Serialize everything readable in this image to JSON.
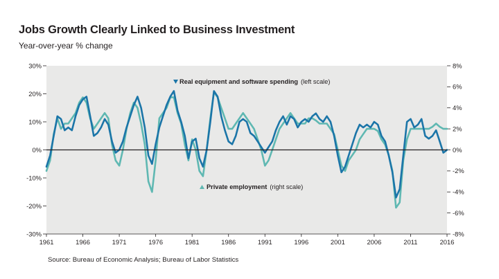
{
  "chart_data": {
    "type": "line",
    "title": "Jobs Growth Clearly Linked to Business Investment",
    "subtitle": "Year-over-year % change",
    "source": "Source: Bureau of Economic Analysis; Bureau of Labor Statistics",
    "x_ticks": [
      "1961",
      "1966",
      "1971",
      "1976",
      "1981",
      "1986",
      "1991",
      "1996",
      "2001",
      "2006",
      "2011",
      "2016"
    ],
    "xlim": [
      1961,
      2016
    ],
    "left_axis": {
      "ylim": [
        -30,
        30
      ],
      "ticks": [
        "30%",
        "20%",
        "10%",
        "0%",
        "-10%",
        "-20%",
        "-30%"
      ]
    },
    "right_axis": {
      "ylim": [
        -8,
        8
      ],
      "ticks": [
        "8%",
        "6%",
        "4%",
        "2%",
        "0%",
        "-2%",
        "-4%",
        "-6%",
        "-8%"
      ]
    },
    "series": [
      {
        "name": "Real equipment and software spending",
        "scale_label": "(left scale)",
        "axis": "left",
        "color": "#1b75a8",
        "points": [
          [
            1961.0,
            -6
          ],
          [
            1961.5,
            -2
          ],
          [
            1962.0,
            5
          ],
          [
            1962.5,
            12
          ],
          [
            1963.0,
            11
          ],
          [
            1963.5,
            7
          ],
          [
            1964.0,
            8
          ],
          [
            1964.5,
            7
          ],
          [
            1965.0,
            12
          ],
          [
            1965.5,
            16
          ],
          [
            1966.0,
            18
          ],
          [
            1966.5,
            19
          ],
          [
            1967.0,
            12
          ],
          [
            1967.5,
            5
          ],
          [
            1968.0,
            6
          ],
          [
            1968.5,
            8
          ],
          [
            1969.0,
            11
          ],
          [
            1969.5,
            9
          ],
          [
            1970.0,
            3
          ],
          [
            1970.5,
            -1
          ],
          [
            1971.0,
            0
          ],
          [
            1971.5,
            3
          ],
          [
            1972.0,
            8
          ],
          [
            1972.5,
            12
          ],
          [
            1973.0,
            16
          ],
          [
            1973.5,
            19
          ],
          [
            1974.0,
            15
          ],
          [
            1974.5,
            8
          ],
          [
            1975.0,
            -2
          ],
          [
            1975.5,
            -5
          ],
          [
            1976.0,
            2
          ],
          [
            1976.5,
            8
          ],
          [
            1977.0,
            12
          ],
          [
            1977.5,
            16
          ],
          [
            1978.0,
            19
          ],
          [
            1978.5,
            21
          ],
          [
            1979.0,
            14
          ],
          [
            1979.5,
            10
          ],
          [
            1980.0,
            5
          ],
          [
            1980.5,
            -3
          ],
          [
            1981.0,
            3
          ],
          [
            1981.5,
            4
          ],
          [
            1982.0,
            -3
          ],
          [
            1982.5,
            -6
          ],
          [
            1983.0,
            0
          ],
          [
            1983.5,
            10
          ],
          [
            1984.0,
            21
          ],
          [
            1984.5,
            19
          ],
          [
            1985.0,
            12
          ],
          [
            1985.5,
            7
          ],
          [
            1986.0,
            3
          ],
          [
            1986.5,
            2
          ],
          [
            1987.0,
            5
          ],
          [
            1987.5,
            10
          ],
          [
            1988.0,
            11
          ],
          [
            1988.5,
            10
          ],
          [
            1989.0,
            6
          ],
          [
            1989.5,
            5
          ],
          [
            1990.0,
            3
          ],
          [
            1990.5,
            1
          ],
          [
            1991.0,
            -1
          ],
          [
            1991.5,
            1
          ],
          [
            1992.0,
            3
          ],
          [
            1992.5,
            7
          ],
          [
            1993.0,
            10
          ],
          [
            1993.5,
            12
          ],
          [
            1994.0,
            9
          ],
          [
            1994.5,
            12
          ],
          [
            1995.0,
            11
          ],
          [
            1995.5,
            8
          ],
          [
            1996.0,
            10
          ],
          [
            1996.5,
            11
          ],
          [
            1997.0,
            10
          ],
          [
            1997.5,
            12
          ],
          [
            1998.0,
            13
          ],
          [
            1998.5,
            11
          ],
          [
            1999.0,
            10
          ],
          [
            1999.5,
            12
          ],
          [
            2000.0,
            10
          ],
          [
            2000.5,
            5
          ],
          [
            2001.0,
            -2
          ],
          [
            2001.5,
            -8
          ],
          [
            2002.0,
            -6
          ],
          [
            2002.5,
            -2
          ],
          [
            2003.0,
            2
          ],
          [
            2003.5,
            6
          ],
          [
            2004.0,
            9
          ],
          [
            2004.5,
            8
          ],
          [
            2005.0,
            9
          ],
          [
            2005.5,
            8
          ],
          [
            2006.0,
            10
          ],
          [
            2006.5,
            9
          ],
          [
            2007.0,
            5
          ],
          [
            2007.5,
            3
          ],
          [
            2008.0,
            -2
          ],
          [
            2008.5,
            -8
          ],
          [
            2009.0,
            -17
          ],
          [
            2009.5,
            -14
          ],
          [
            2010.0,
            -2
          ],
          [
            2010.5,
            10
          ],
          [
            2011.0,
            11
          ],
          [
            2011.5,
            8
          ],
          [
            2012.0,
            9
          ],
          [
            2012.5,
            11
          ],
          [
            2013.0,
            5
          ],
          [
            2013.5,
            4
          ],
          [
            2014.0,
            5
          ],
          [
            2014.5,
            7
          ],
          [
            2015.0,
            3
          ],
          [
            2015.5,
            -1
          ],
          [
            2016.0,
            0
          ]
        ]
      },
      {
        "name": "Private employment",
        "scale_label": "(right scale)",
        "axis": "right",
        "color": "#5fb8b2",
        "points": [
          [
            1961.0,
            -2
          ],
          [
            1961.5,
            -1
          ],
          [
            1962.0,
            1.5
          ],
          [
            1962.5,
            3
          ],
          [
            1963.0,
            2
          ],
          [
            1963.5,
            2.5
          ],
          [
            1964.0,
            2.5
          ],
          [
            1964.5,
            3
          ],
          [
            1965.0,
            3.5
          ],
          [
            1965.5,
            4.5
          ],
          [
            1966.0,
            5
          ],
          [
            1966.5,
            4.5
          ],
          [
            1967.0,
            3
          ],
          [
            1967.5,
            2
          ],
          [
            1968.0,
            2.5
          ],
          [
            1968.5,
            3
          ],
          [
            1969.0,
            3.5
          ],
          [
            1969.5,
            3
          ],
          [
            1970.0,
            0.5
          ],
          [
            1970.5,
            -1
          ],
          [
            1971.0,
            -1.5
          ],
          [
            1971.5,
            0
          ],
          [
            1972.0,
            2
          ],
          [
            1972.5,
            3.5
          ],
          [
            1973.0,
            4.5
          ],
          [
            1973.5,
            4
          ],
          [
            1974.0,
            2.5
          ],
          [
            1974.5,
            0.5
          ],
          [
            1975.0,
            -3
          ],
          [
            1975.5,
            -4
          ],
          [
            1976.0,
            -1
          ],
          [
            1976.5,
            3
          ],
          [
            1977.0,
            3.5
          ],
          [
            1977.5,
            4
          ],
          [
            1978.0,
            5
          ],
          [
            1978.5,
            5
          ],
          [
            1979.0,
            3.5
          ],
          [
            1979.5,
            2.5
          ],
          [
            1980.0,
            0.5
          ],
          [
            1980.5,
            -1
          ],
          [
            1981.0,
            1
          ],
          [
            1981.5,
            0
          ],
          [
            1982.0,
            -2
          ],
          [
            1982.5,
            -2.5
          ],
          [
            1983.0,
            0
          ],
          [
            1983.5,
            3
          ],
          [
            1984.0,
            5.5
          ],
          [
            1984.5,
            5
          ],
          [
            1985.0,
            4
          ],
          [
            1985.5,
            3
          ],
          [
            1986.0,
            2
          ],
          [
            1986.5,
            2
          ],
          [
            1987.0,
            2.5
          ],
          [
            1987.5,
            3
          ],
          [
            1988.0,
            3.5
          ],
          [
            1988.5,
            3
          ],
          [
            1989.0,
            2.5
          ],
          [
            1989.5,
            2
          ],
          [
            1990.0,
            1
          ],
          [
            1990.5,
            0
          ],
          [
            1991.0,
            -1.5
          ],
          [
            1991.5,
            -1
          ],
          [
            1992.0,
            0
          ],
          [
            1992.5,
            1
          ],
          [
            1993.0,
            2
          ],
          [
            1993.5,
            2.5
          ],
          [
            1994.0,
            3
          ],
          [
            1994.5,
            3.5
          ],
          [
            1995.0,
            3
          ],
          [
            1995.5,
            2.5
          ],
          [
            1996.0,
            2.5
          ],
          [
            1996.5,
            2.5
          ],
          [
            1997.0,
            3
          ],
          [
            1997.5,
            3
          ],
          [
            1998.0,
            2.8
          ],
          [
            1998.5,
            2.5
          ],
          [
            1999.0,
            2.5
          ],
          [
            1999.5,
            2.5
          ],
          [
            2000.0,
            2
          ],
          [
            2000.5,
            1.5
          ],
          [
            2001.0,
            0
          ],
          [
            2001.5,
            -1.5
          ],
          [
            2002.0,
            -2
          ],
          [
            2002.5,
            -1
          ],
          [
            2003.0,
            -0.5
          ],
          [
            2003.5,
            0
          ],
          [
            2004.0,
            1
          ],
          [
            2004.5,
            1.5
          ],
          [
            2005.0,
            2
          ],
          [
            2005.5,
            2
          ],
          [
            2006.0,
            2
          ],
          [
            2006.5,
            1.8
          ],
          [
            2007.0,
            1
          ],
          [
            2007.5,
            0.5
          ],
          [
            2008.0,
            -0.5
          ],
          [
            2008.5,
            -2
          ],
          [
            2009.0,
            -5.5
          ],
          [
            2009.5,
            -5
          ],
          [
            2010.0,
            -1
          ],
          [
            2010.5,
            1
          ],
          [
            2011.0,
            2
          ],
          [
            2011.5,
            2
          ],
          [
            2012.0,
            2
          ],
          [
            2012.5,
            2
          ],
          [
            2013.0,
            2
          ],
          [
            2013.5,
            2
          ],
          [
            2014.0,
            2.2
          ],
          [
            2014.5,
            2.5
          ],
          [
            2015.0,
            2.2
          ],
          [
            2015.5,
            2
          ],
          [
            2016.0,
            2
          ]
        ]
      }
    ]
  }
}
